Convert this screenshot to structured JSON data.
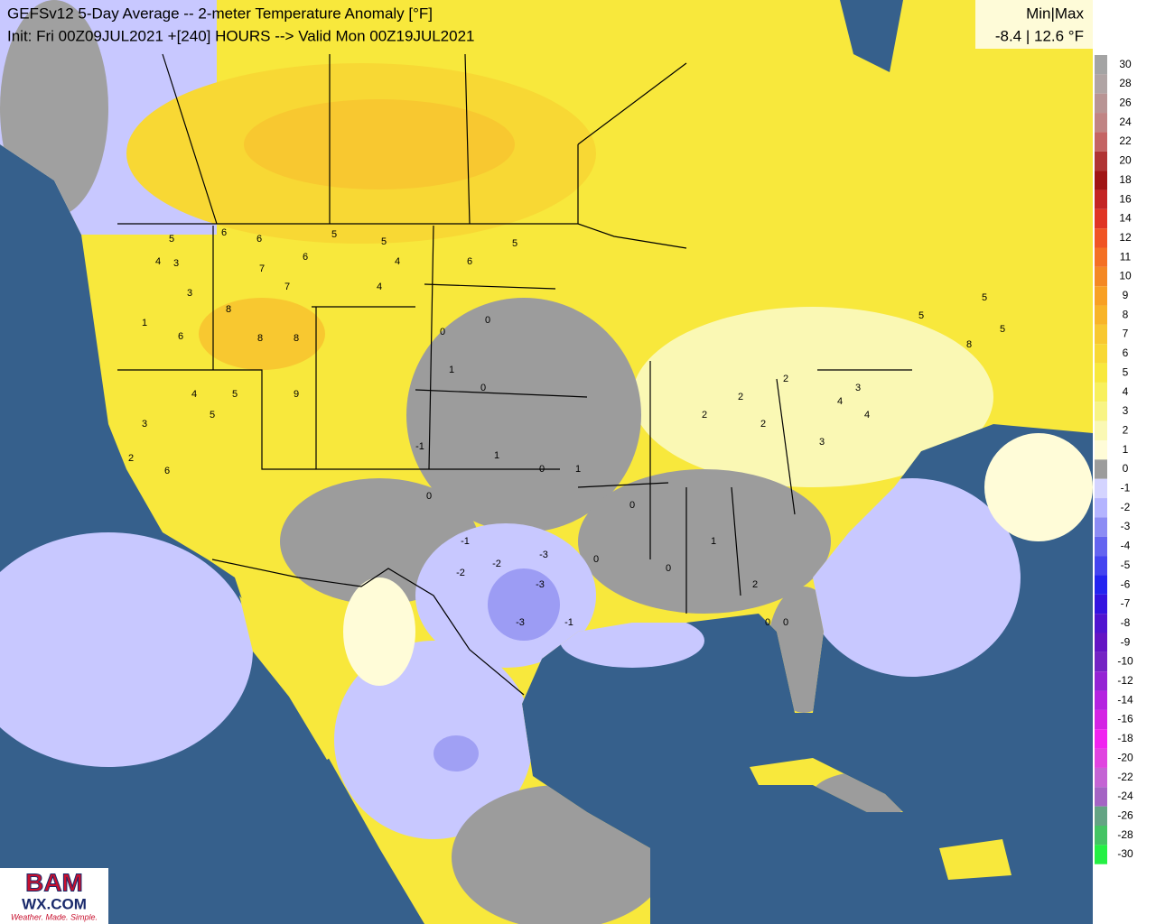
{
  "header": {
    "title": "GEFSv12 5-Day Average -- 2-meter Temperature Anomaly [°F]",
    "subtitle": "Init: Fri 00Z09JUL2021 +[240] HOURS --> Valid Mon 00Z19JUL2021",
    "minmax_label": "Min|Max",
    "minmax_text": "-8.4 | 12.6 °F"
  },
  "colorbar": {
    "levels": [
      30,
      28,
      26,
      24,
      22,
      20,
      18,
      16,
      14,
      12,
      11,
      10,
      9,
      8,
      7,
      6,
      5,
      4,
      3,
      2,
      1,
      0,
      -1,
      -2,
      -3,
      -4,
      -5,
      -6,
      -7,
      -8,
      -9,
      -10,
      -12,
      -14,
      -16,
      -18,
      -20,
      -22,
      -24,
      -26,
      -28,
      -30
    ],
    "colors": [
      "#a4a4a4",
      "#b0a4a4",
      "#b89494",
      "#c08484",
      "#c46464",
      "#b03434",
      "#a01414",
      "#c42424",
      "#e03424",
      "#f05424",
      "#f47024",
      "#f48824",
      "#f8a024",
      "#f8b428",
      "#f8c830",
      "#f8d834",
      "#f8e83c",
      "#f8f05c",
      "#f8f484",
      "#faf8b4",
      "#fffcd8",
      "#9c9c9c",
      "#d4d4ff",
      "#b4b4ff",
      "#8c8cf4",
      "#6464f0",
      "#4444f0",
      "#2424f0",
      "#3414e0",
      "#5014d0",
      "#6414c4",
      "#7424c4",
      "#9424d4",
      "#b424e0",
      "#d424e4",
      "#f024f0",
      "#e044e0",
      "#c464d4",
      "#a464c4",
      "#64a484",
      "#44c464",
      "#24f044"
    ]
  },
  "stations": {
    "values": [
      5,
      3,
      4,
      3,
      1,
      6,
      6,
      7,
      8,
      8,
      8,
      9,
      6,
      5,
      5,
      4,
      6,
      7,
      5,
      4,
      6,
      4,
      5,
      5,
      0,
      0,
      1,
      0,
      -1,
      0,
      1,
      1,
      0,
      2,
      2,
      2,
      2,
      3,
      3,
      4,
      4,
      5,
      5,
      5,
      8,
      0,
      0,
      1,
      -1,
      -2,
      -2,
      -3,
      -3,
      -3,
      -1,
      0,
      0,
      2,
      6,
      3,
      2,
      0
    ]
  },
  "logo": {
    "name": "BAM",
    "site": "WX.COM",
    "tagline": "Weather. Made. Simple."
  }
}
